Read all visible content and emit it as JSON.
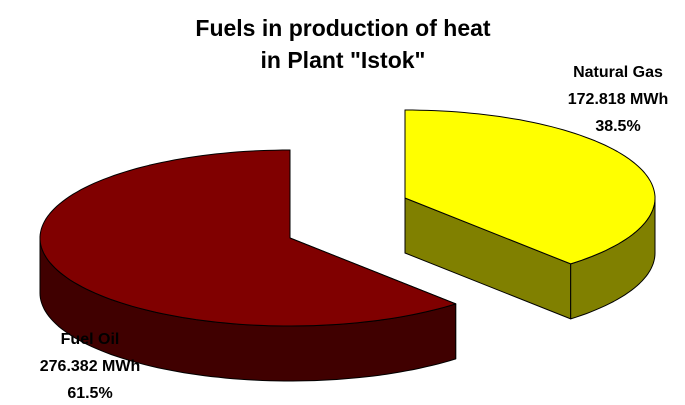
{
  "chart_data": {
    "type": "pie3d",
    "title": [
      "Fuels in production of heat",
      "in Plant \"Istok\""
    ],
    "categories": [
      "Natural Gas",
      "Fuel Oil"
    ],
    "values": [
      172.818,
      276.382
    ],
    "value_labels": [
      "172.818 MWh",
      "276.382 MWh"
    ],
    "percentages": [
      38.5,
      61.5
    ],
    "percent_labels": [
      "38.5%",
      "61.5%"
    ],
    "colors": [
      "#ffff00",
      "#800000"
    ],
    "side_colors": [
      "#808000",
      "#400000"
    ],
    "exploded": [
      true,
      false
    ]
  }
}
